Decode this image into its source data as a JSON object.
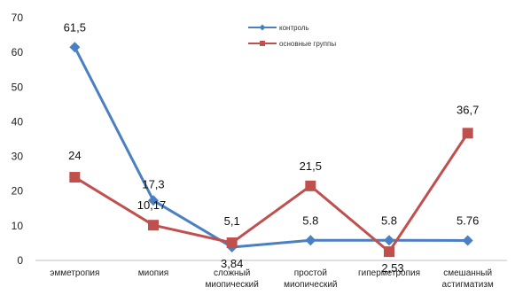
{
  "chart_data": {
    "type": "line",
    "categories": [
      [
        "эмметропия"
      ],
      [
        "миопия"
      ],
      [
        "сложный",
        "миопический"
      ],
      [
        "простой",
        "миопический"
      ],
      [
        "гиперметропия"
      ],
      [
        "смешанный",
        "астигматизм"
      ]
    ],
    "series": [
      {
        "name": "контроль",
        "color": "#4a7fc1",
        "marker": "diamond",
        "values": [
          61.5,
          17.3,
          3.84,
          5.8,
          5.8,
          5.76
        ],
        "labels": [
          "61,5",
          "17,3",
          "3,84",
          "5.8",
          "5.8",
          "5.76"
        ]
      },
      {
        "name": "основные группы",
        "color": "#c0504d",
        "marker": "square",
        "values": [
          24,
          10.17,
          5.1,
          21.5,
          2.53,
          36.7
        ],
        "labels": [
          "24",
          "10,17",
          "5,1",
          "21,5",
          "2,53",
          "36,7"
        ]
      }
    ],
    "ylim": [
      0,
      70
    ],
    "yticks": [
      0,
      10,
      20,
      30,
      40,
      50,
      60,
      70
    ],
    "grid": false,
    "legend": "top-center"
  }
}
